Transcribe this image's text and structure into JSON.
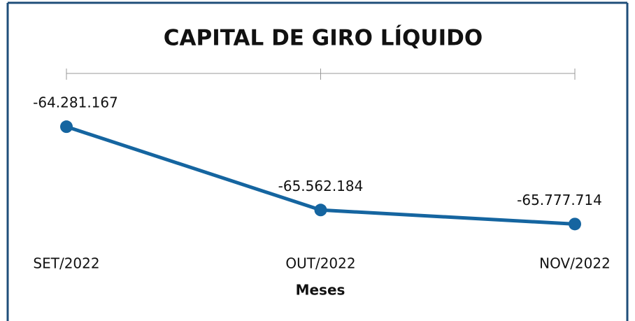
{
  "chart_data": {
    "type": "line",
    "title": "CAPITAL DE GIRO LÍQUIDO",
    "x_label": "Meses",
    "categories": [
      "SET/2022",
      "OUT/2022",
      "NOV/2022"
    ],
    "series": [
      {
        "name": "Capital de Giro Líquido",
        "color": "#1565a0",
        "values": [
          -64281167,
          -65562184,
          -65777714
        ],
        "value_labels": [
          "-64.281.167",
          "-65.562.184",
          "-65.777.714"
        ]
      }
    ],
    "ylim": [
      -66000000,
      -64000000
    ]
  }
}
